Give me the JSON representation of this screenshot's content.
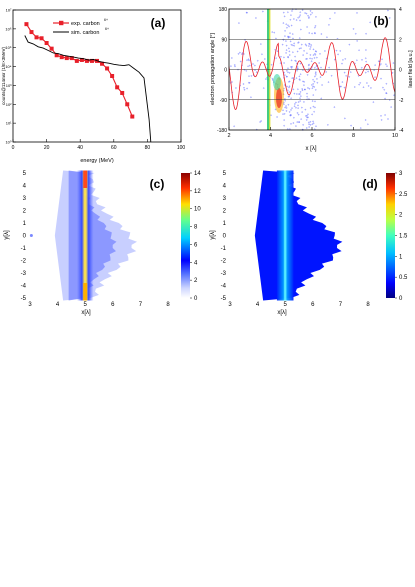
{
  "chart_data": [
    {
      "panel_label": "(a)",
      "type": "line",
      "xlabel": "energy (MeV)",
      "ylabel": "counts@114msr (1/E×3MeV)",
      "xlim": [
        0,
        100
      ],
      "ylim_log10": [
        0,
        7
      ],
      "y_scale": "log",
      "x_ticks": [
        "0",
        "20",
        "40",
        "60",
        "80",
        "100"
      ],
      "y_ticks": [
        "10⁰",
        "10¹",
        "10²",
        "10³",
        "10⁴",
        "10⁵",
        "10⁶",
        "10⁷"
      ],
      "legend_position": "top-center",
      "series": [
        {
          "name": "exp. carbon",
          "name_sup": "6+",
          "color": "#e8202a",
          "marker": "square",
          "x": [
            8,
            11,
            14,
            17,
            20,
            23,
            26,
            29,
            32,
            35,
            38,
            41,
            44,
            47,
            50,
            53,
            56,
            59,
            62,
            65,
            68,
            71
          ],
          "log10_y": [
            6.25,
            5.83,
            5.55,
            5.5,
            5.25,
            4.95,
            4.6,
            4.5,
            4.45,
            4.45,
            4.3,
            4.35,
            4.3,
            4.3,
            4.3,
            4.15,
            3.9,
            3.5,
            2.9,
            2.6,
            2.0,
            1.35
          ]
        },
        {
          "name": "sim. carbon",
          "name_sup": "6+",
          "color": "#000000",
          "marker": "none",
          "x": [
            7,
            9,
            12,
            15,
            18,
            21,
            24,
            27,
            30,
            33,
            36,
            39,
            42,
            45,
            48,
            51,
            54,
            57,
            60,
            63,
            66,
            69,
            72,
            75,
            78,
            81,
            82
          ],
          "log10_y": [
            5.65,
            5.3,
            5.2,
            5.05,
            4.98,
            4.85,
            4.72,
            4.68,
            4.6,
            4.55,
            4.5,
            4.45,
            4.42,
            4.35,
            4.38,
            4.28,
            4.22,
            4.18,
            4.12,
            4.08,
            4.05,
            4.1,
            3.9,
            3.7,
            3.4,
            1.2,
            0.0
          ]
        }
      ]
    },
    {
      "panel_label": "(b)",
      "type": "scatter",
      "xlabel": "x [λ]",
      "ylabel": "electron propagation angle [°]",
      "y2label": "laser field [a.u.]",
      "xlim": [
        2,
        10
      ],
      "ylim": [
        -180,
        180
      ],
      "y2lim": [
        -4,
        4
      ],
      "x_ticks": [
        "2",
        "4",
        "6",
        "8",
        "10"
      ],
      "y_ticks": [
        "-180",
        "-90",
        "0",
        "90",
        "180"
      ],
      "y2_ticks": [
        "-4",
        "-2",
        "0",
        "2",
        "4"
      ],
      "grid": true,
      "scatter_color": "#3f4bff",
      "field_color": "#e8202a"
    },
    {
      "panel_label": "(c)",
      "type": "heatmap",
      "xlabel": "x[λ]",
      "ylabel": "y[λ]",
      "xlim": [
        3,
        8
      ],
      "ylim": [
        -5,
        5
      ],
      "x_ticks": [
        "3",
        "4",
        "5",
        "6",
        "7",
        "8"
      ],
      "y_ticks": [
        "5",
        "4",
        "3",
        "2",
        "1",
        "0",
        "-1",
        "-2",
        "-3",
        "-4",
        "-5"
      ],
      "colorbar_ticks": [
        "14",
        "12",
        "10",
        "8",
        "6",
        "4",
        "2",
        "0"
      ],
      "colorbar_range": [
        0,
        14
      ]
    },
    {
      "panel_label": "(d)",
      "type": "heatmap",
      "xlabel": "x[λ]",
      "ylabel": "y[λ]",
      "xlim": [
        3,
        8
      ],
      "ylim": [
        -5,
        5
      ],
      "x_ticks": [
        "3",
        "4",
        "5",
        "6",
        "7",
        "8"
      ],
      "y_ticks": [
        "5",
        "4",
        "3",
        "2",
        "1",
        "0",
        "-1",
        "-2",
        "-3",
        "-4",
        "-5"
      ],
      "colorbar_ticks": [
        "3",
        "2.5",
        "2",
        "1.5",
        "1",
        "0.5",
        "0"
      ],
      "colorbar_range": [
        0,
        3
      ]
    }
  ]
}
